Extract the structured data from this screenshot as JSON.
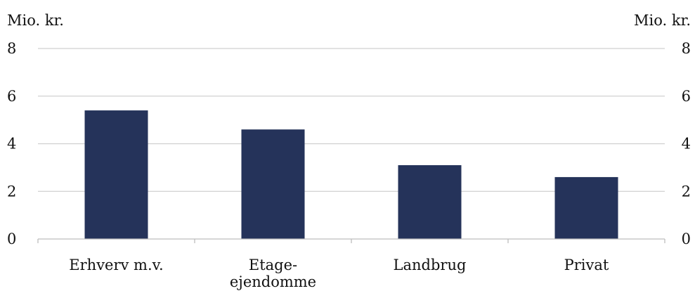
{
  "chart_data": {
    "type": "bar",
    "categories": [
      "Erhverv  m.v.",
      "Etage-\nejendomme",
      "Landbrug",
      "Privat"
    ],
    "values": [
      5.4,
      4.6,
      3.1,
      2.6
    ],
    "ylabel_left": "Mio. kr.",
    "ylabel_right": "Mio. kr.",
    "ylim": [
      0,
      8
    ],
    "yticks": [
      0,
      2,
      4,
      6,
      8
    ],
    "bar_color": "#25335a",
    "grid": true
  }
}
